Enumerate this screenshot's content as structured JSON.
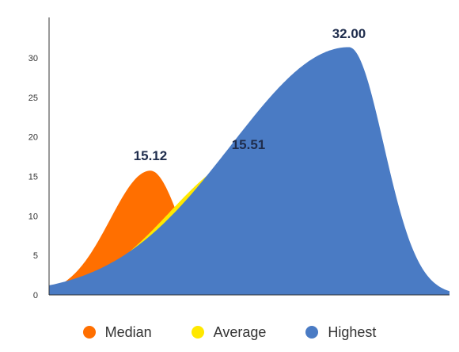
{
  "chart_data": {
    "type": "area",
    "ylim": [
      0,
      35
    ],
    "yticks": [
      0,
      5,
      10,
      15,
      20,
      25,
      30
    ],
    "grid": false,
    "legend_position": "bottom",
    "series": [
      {
        "name": "Median",
        "peak_value": 15.12,
        "label": "15.12",
        "color": "#ff6f00"
      },
      {
        "name": "Average",
        "peak_value": 15.51,
        "label": "15.51",
        "color": "#ffe800"
      },
      {
        "name": "Highest",
        "peak_value": 32.0,
        "label": "32.00",
        "color": "#4a7bc4"
      }
    ]
  }
}
